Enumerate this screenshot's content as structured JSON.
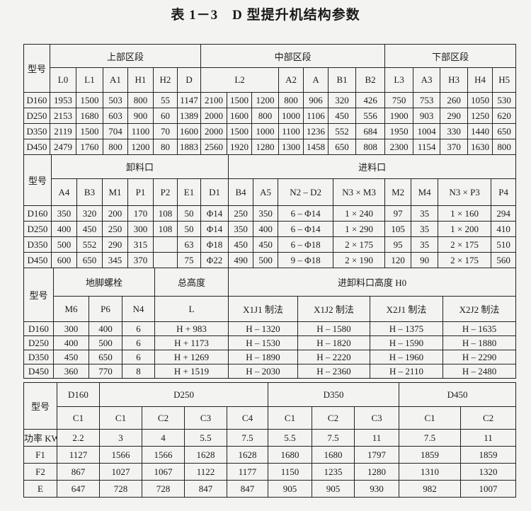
{
  "title": "表 1－3　D 型提升机结构参数",
  "tables": [
    {
      "model_label": "型号",
      "groups": [
        {
          "label": "上部区段",
          "cols": [
            {
              "label": "L0",
              "span": 1
            },
            {
              "label": "L1",
              "span": 1
            },
            {
              "label": "A1",
              "span": 1
            },
            {
              "label": "H1",
              "span": 1
            },
            {
              "label": "H2",
              "span": 1
            },
            {
              "label": "D",
              "span": 1
            }
          ]
        },
        {
          "label": "中部区段",
          "cols": [
            {
              "label": "L2",
              "span": 3
            },
            {
              "label": "A2",
              "span": 1
            },
            {
              "label": "A",
              "span": 1
            },
            {
              "label": "B1",
              "span": 1
            },
            {
              "label": "B2",
              "span": 1
            }
          ]
        },
        {
          "label": "下部区段",
          "cols": [
            {
              "label": "L3",
              "span": 1
            },
            {
              "label": "A3",
              "span": 1
            },
            {
              "label": "H3",
              "span": 1
            },
            {
              "label": "H4",
              "span": 1
            },
            {
              "label": "H5",
              "span": 1
            }
          ]
        }
      ],
      "rows": [
        {
          "label": "D160",
          "values": [
            "1953",
            "1500",
            "503",
            "800",
            "55",
            "1147",
            "2100",
            "1500",
            "1200",
            "800",
            "906",
            "320",
            "426",
            "750",
            "753",
            "260",
            "1050",
            "530"
          ]
        },
        {
          "label": "D250",
          "values": [
            "2153",
            "1680",
            "603",
            "900",
            "60",
            "1389",
            "2000",
            "1600",
            "800",
            "1000",
            "1106",
            "450",
            "556",
            "1900",
            "903",
            "290",
            "1250",
            "620"
          ]
        },
        {
          "label": "D350",
          "values": [
            "2119",
            "1500",
            "704",
            "1100",
            "70",
            "1600",
            "2000",
            "1500",
            "1000",
            "1100",
            "1236",
            "552",
            "684",
            "1950",
            "1004",
            "330",
            "1440",
            "650"
          ]
        },
        {
          "label": "D450",
          "values": [
            "2479",
            "1760",
            "800",
            "1200",
            "80",
            "1883",
            "2560",
            "1920",
            "1280",
            "1300",
            "1458",
            "650",
            "808",
            "2300",
            "1154",
            "370",
            "1630",
            "800"
          ]
        }
      ]
    },
    {
      "model_label": "型号",
      "groups": [
        {
          "label": "卸料口",
          "cols": [
            {
              "label": "A4",
              "span": 1
            },
            {
              "label": "B3",
              "span": 1
            },
            {
              "label": "M1",
              "span": 1
            },
            {
              "label": "P1",
              "span": 1
            },
            {
              "label": "P2",
              "span": 1
            },
            {
              "label": "E1",
              "span": 1
            },
            {
              "label": "D1",
              "span": 1
            }
          ]
        },
        {
          "label": "进料口",
          "cols": [
            {
              "label": "B4",
              "span": 1
            },
            {
              "label": "A5",
              "span": 1
            },
            {
              "label": "N2 – D2",
              "span": 1
            },
            {
              "label": "N3 × M3",
              "span": 1
            },
            {
              "label": "M2",
              "span": 1
            },
            {
              "label": "M4",
              "span": 1
            },
            {
              "label": "N3 × P3",
              "span": 1
            },
            {
              "label": "P4",
              "span": 1
            }
          ]
        }
      ],
      "rows": [
        {
          "label": "D160",
          "values": [
            "350",
            "320",
            "200",
            "170",
            "108",
            "50",
            "Φ14",
            "250",
            "350",
            "6 – Φ14",
            "1 × 240",
            "97",
            "35",
            "1 × 160",
            "294"
          ]
        },
        {
          "label": "D250",
          "values": [
            "400",
            "450",
            "250",
            "300",
            "108",
            "50",
            "Φ14",
            "350",
            "400",
            "6 – Φ14",
            "1 × 290",
            "105",
            "35",
            "1 × 200",
            "410"
          ]
        },
        {
          "label": "D350",
          "values": [
            "500",
            "552",
            "290",
            "315",
            "",
            "63",
            "Φ18",
            "450",
            "450",
            "6 – Φ18",
            "2 × 175",
            "95",
            "35",
            "2 × 175",
            "510"
          ]
        },
        {
          "label": "D450",
          "values": [
            "600",
            "650",
            "345",
            "370",
            "",
            "75",
            "Φ22",
            "490",
            "500",
            "9 – Φ18",
            "2 × 190",
            "120",
            "90",
            "2 × 175",
            "560"
          ]
        }
      ]
    },
    {
      "model_label": "型号",
      "groups": [
        {
          "label": "地脚螺栓",
          "cols": [
            {
              "label": "M6",
              "span": 1
            },
            {
              "label": "P6",
              "span": 1
            },
            {
              "label": "N4",
              "span": 1
            }
          ]
        },
        {
          "label": "总高度",
          "cols": [
            {
              "label": "L",
              "span": 1
            }
          ]
        },
        {
          "label": "进卸料口高度 H0",
          "cols": [
            {
              "label": "X1J1 制法",
              "span": 1
            },
            {
              "label": "X1J2 制法",
              "span": 1
            },
            {
              "label": "X2J1 制法",
              "span": 1
            },
            {
              "label": "X2J2 制法",
              "span": 1
            }
          ]
        }
      ],
      "rows": [
        {
          "label": "D160",
          "values": [
            "300",
            "400",
            "6",
            "H + 983",
            "H – 1320",
            "H – 1580",
            "H – 1375",
            "H – 1635"
          ]
        },
        {
          "label": "D250",
          "values": [
            "400",
            "500",
            "6",
            "H + 1173",
            "H – 1530",
            "H – 1820",
            "H – 1590",
            "H – 1880"
          ]
        },
        {
          "label": "D350",
          "values": [
            "450",
            "650",
            "6",
            "H + 1269",
            "H – 1890",
            "H – 2220",
            "H – 1960",
            "H – 2290"
          ]
        },
        {
          "label": "D450",
          "values": [
            "360",
            "770",
            "8",
            "H + 1519",
            "H – 2030",
            "H – 2360",
            "H – 2110",
            "H – 2480"
          ]
        }
      ]
    },
    {
      "model_label": "型号",
      "groups": [
        {
          "label": "D160",
          "cols": [
            {
              "label": "C1",
              "span": 1
            }
          ]
        },
        {
          "label": "D250",
          "cols": [
            {
              "label": "C1",
              "span": 1
            },
            {
              "label": "C2",
              "span": 1
            },
            {
              "label": "C3",
              "span": 1
            },
            {
              "label": "C4",
              "span": 1
            }
          ]
        },
        {
          "label": "D350",
          "cols": [
            {
              "label": "C1",
              "span": 1
            },
            {
              "label": "C2",
              "span": 1
            },
            {
              "label": "C3",
              "span": 1
            }
          ]
        },
        {
          "label": "D450",
          "cols": [
            {
              "label": "C1",
              "span": 1
            },
            {
              "label": "C2",
              "span": 1
            }
          ]
        }
      ],
      "rows": [
        {
          "label": "功率 KW",
          "values": [
            "2.2",
            "3",
            "4",
            "5.5",
            "7.5",
            "5.5",
            "7.5",
            "11",
            "7.5",
            "11"
          ]
        },
        {
          "label": "F1",
          "values": [
            "1127",
            "1566",
            "1566",
            "1628",
            "1628",
            "1680",
            "1680",
            "1797",
            "1859",
            "1859"
          ]
        },
        {
          "label": "F2",
          "values": [
            "867",
            "1027",
            "1067",
            "1122",
            "1177",
            "1150",
            "1235",
            "1280",
            "1310",
            "1320"
          ]
        },
        {
          "label": "E",
          "values": [
            "647",
            "728",
            "728",
            "847",
            "847",
            "905",
            "905",
            "930",
            "982",
            "1007"
          ]
        }
      ]
    }
  ]
}
